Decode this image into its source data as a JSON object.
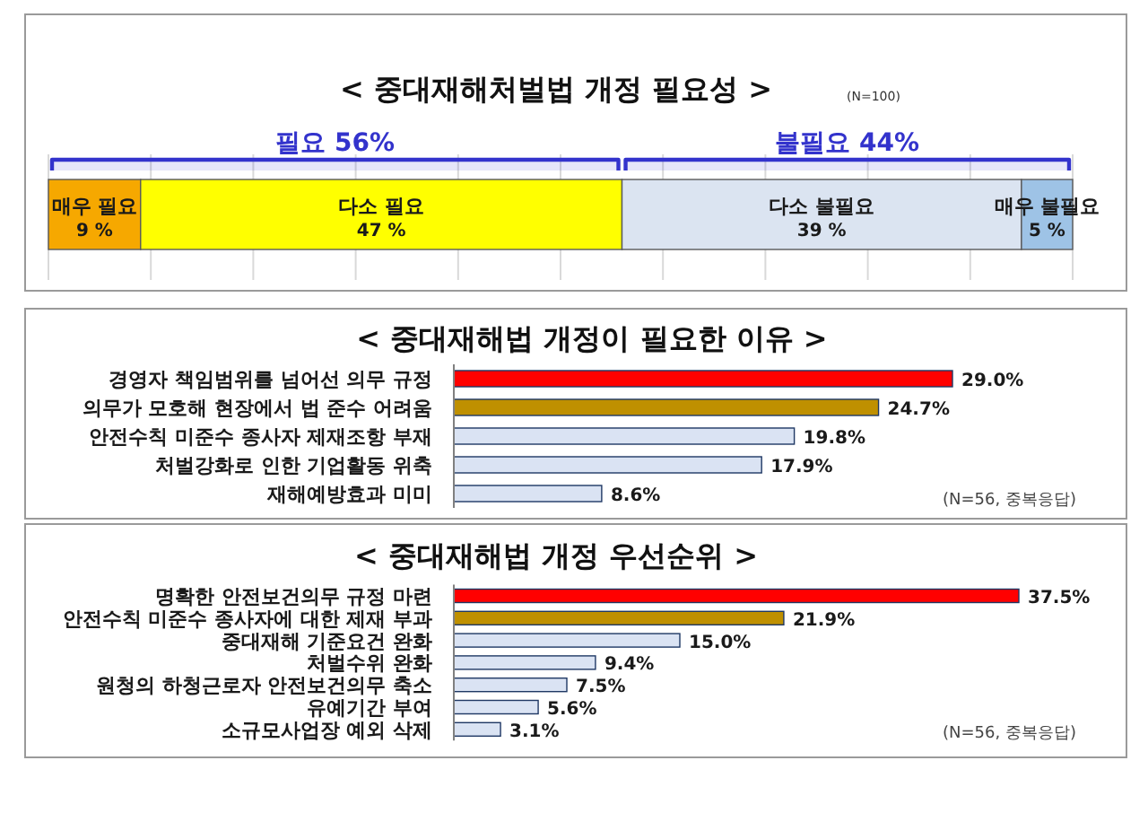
{
  "chart_data": [
    {
      "type": "bar",
      "orientation": "horizontal",
      "stacked": true,
      "title": "< 중대재해처벌법 개정 필요성 >",
      "subtitle": "(N=100)",
      "categories": [
        null
      ],
      "series": [
        {
          "name": "매우 필요",
          "color": "#f6a800",
          "values": [
            9
          ],
          "value_labels": [
            "9 %"
          ]
        },
        {
          "name": "다소 필요",
          "color": "#ffff00",
          "values": [
            47
          ],
          "value_labels": [
            "47 %"
          ]
        },
        {
          "name": "다소 불필요",
          "color": "#dbe4f1",
          "values": [
            39
          ],
          "value_labels": [
            "39 %"
          ]
        },
        {
          "name": "매우 불필요",
          "color": "#9ec3e6",
          "values": [
            5
          ],
          "value_labels": [
            "5 %"
          ]
        }
      ],
      "xlim": [
        0,
        100
      ],
      "xticks": [
        0,
        10,
        20,
        30,
        40,
        50,
        60,
        70,
        80,
        90,
        100
      ],
      "grid": "x",
      "tick_labels": false,
      "bands": [
        {
          "axis": "x",
          "from": 0,
          "to": 56,
          "label": "필요 56%",
          "color": "#3333cc"
        },
        {
          "axis": "x",
          "from": 56,
          "to": 100,
          "label": "불필요 44%",
          "color": "#3333cc"
        }
      ]
    },
    {
      "type": "bar",
      "orientation": "horizontal",
      "title": "< 중대재해법 개정이 필요한 이유 >",
      "categories": [
        "경영자 책임범위를 넘어선 의무 규정",
        "의무가 모호해 현장에서 법 준수 어려움",
        "안전수칙 미준수 종사자 제재조항 부재",
        "처벌강화로 인한 기업활동 위축",
        "재해예방효과 미미"
      ],
      "values": [
        29.0,
        24.7,
        19.8,
        17.9,
        8.6
      ],
      "colors": [
        "#ff0000",
        "#bf9000",
        "#dae3f3",
        "#dae3f3",
        "#dae3f3"
      ],
      "value_labels": [
        "29.0%",
        "24.7%",
        "19.8%",
        "17.9%",
        "8.6%"
      ],
      "annotations": [
        "(N=56, 중복응답)"
      ]
    },
    {
      "type": "bar",
      "orientation": "horizontal",
      "title": "< 중대재해법 개정 우선순위 >",
      "categories": [
        "명확한 안전보건의무 규정 마련",
        "안전수칙 미준수 종사자에 대한 제재 부과",
        "중대재해 기준요건 완화",
        "처벌수위 완화",
        "원청의 하청근로자 안전보건의무 축소",
        "유예기간 부여",
        "소규모사업장 예외 삭제"
      ],
      "values": [
        37.5,
        21.9,
        15.0,
        9.4,
        7.5,
        5.6,
        3.1
      ],
      "colors": [
        "#ff0000",
        "#bf9000",
        "#dae3f3",
        "#dae3f3",
        "#dae3f3",
        "#dae3f3",
        "#dae3f3"
      ],
      "value_labels": [
        "37.5%",
        "21.9%",
        "15.0%",
        "9.4%",
        "7.5%",
        "5.6%",
        "3.1%"
      ],
      "annotations": [
        "(N=56, 중복응답)"
      ]
    }
  ]
}
